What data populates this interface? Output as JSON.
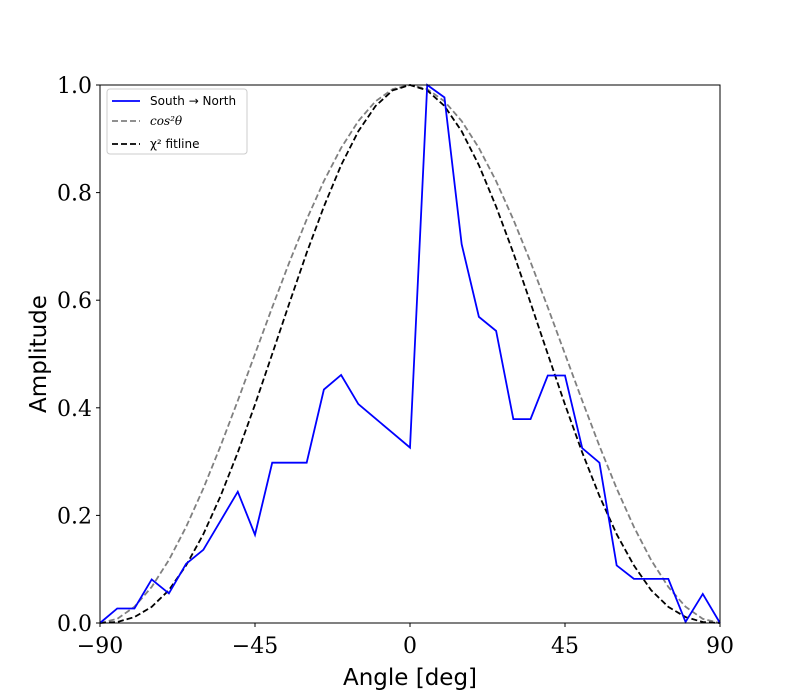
{
  "chart_data": {
    "type": "line",
    "title": "",
    "xlabel": "Angle [deg]",
    "ylabel": "Amplitude",
    "xlim": [
      -90,
      90
    ],
    "ylim": [
      0,
      1.0
    ],
    "xticks": [
      -90,
      -45,
      0,
      45,
      90
    ],
    "xtick_labels": [
      "−90",
      "−45",
      "0",
      "45",
      "90"
    ],
    "yticks": [
      0,
      0.2,
      0.4,
      0.6,
      0.8,
      1.0
    ],
    "ytick_labels": [
      "0.0",
      "0.2",
      "0.4",
      "0.6",
      "0.8",
      "1.0"
    ],
    "grid": false,
    "legend_placement": "top-left",
    "x": [
      -90,
      -85,
      -80,
      -75,
      -70,
      -65,
      -60,
      -55,
      -50,
      -45,
      -40,
      -35,
      -30,
      -25,
      -20,
      -15,
      -10,
      -5,
      0,
      5,
      10,
      15,
      20,
      25,
      30,
      35,
      40,
      45,
      50,
      55,
      60,
      65,
      70,
      75,
      80,
      85,
      90
    ],
    "series": [
      {
        "name": "South → North",
        "color": "#0000ff",
        "style": "solid",
        "values": [
          0,
          0.027,
          0.027,
          0.081,
          0.055,
          0.11,
          0.136,
          0.19,
          0.244,
          0.164,
          0.298,
          0.298,
          0.298,
          0.434,
          0.461,
          0.407,
          0.38,
          0.353,
          0.326,
          1.0,
          0.977,
          0.704,
          0.569,
          0.543,
          0.379,
          0.379,
          0.46,
          0.46,
          0.325,
          0.298,
          0.107,
          0.082,
          0.082,
          0.082,
          0.002,
          0.054,
          0
        ]
      },
      {
        "name": "cos²θ",
        "color": "#808080",
        "style": "dashed",
        "values": [
          0,
          0.0076,
          0.0302,
          0.067,
          0.117,
          0.1786,
          0.25,
          0.329,
          0.4132,
          0.5,
          0.5868,
          0.671,
          0.75,
          0.8214,
          0.883,
          0.933,
          0.9698,
          0.9924,
          1,
          0.9924,
          0.9698,
          0.933,
          0.883,
          0.8214,
          0.75,
          0.671,
          0.5868,
          0.5,
          0.4132,
          0.329,
          0.25,
          0.1786,
          0.117,
          0.067,
          0.0302,
          0.0076,
          0
        ]
      },
      {
        "name": "χ² fitline",
        "color": "#000000",
        "style": "dashed",
        "values": [
          0,
          0.0018,
          0.011,
          0.03,
          0.061,
          0.107,
          0.165,
          0.236,
          0.317,
          0.406,
          0.5,
          0.595,
          0.688,
          0.774,
          0.851,
          0.914,
          0.961,
          0.9901,
          1,
          0.9901,
          0.961,
          0.914,
          0.851,
          0.774,
          0.688,
          0.595,
          0.5,
          0.406,
          0.317,
          0.236,
          0.165,
          0.107,
          0.061,
          0.03,
          0.011,
          0.0018,
          0
        ]
      }
    ]
  }
}
